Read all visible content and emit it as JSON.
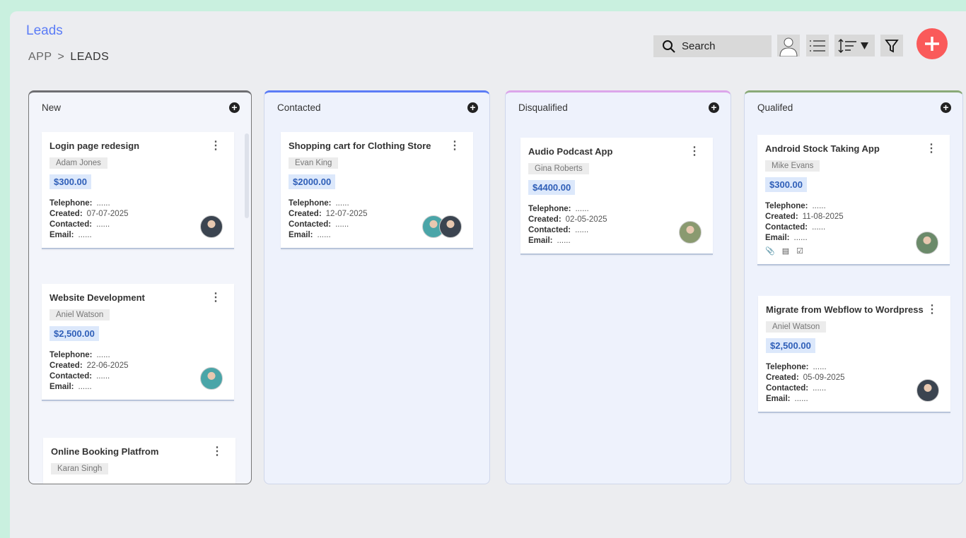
{
  "header": {
    "title": "Leads",
    "breadcrumb": [
      "APP",
      ">",
      "LEADS"
    ]
  },
  "toolbar": {
    "search_placeholder": "Search"
  },
  "colors": {
    "accent": "#5b7cf6",
    "add": "#fa5a5a"
  },
  "columns": [
    {
      "title": "New",
      "color": "#6e6e72",
      "cards": [
        {
          "title": "Login page redesign",
          "owner": "Adam Jones",
          "amount": "$300.00",
          "telephone": "......",
          "created": "07-07-2025",
          "contacted": "......",
          "email": "......",
          "avatars": [
            "#3b4450"
          ]
        },
        {
          "title": "Website Development",
          "owner": "Aniel Watson",
          "amount": "$2,500.00",
          "telephone": "......",
          "created": "22-06-2025",
          "contacted": "......",
          "email": "......",
          "avatars": [
            "#4aa5a8"
          ]
        },
        {
          "title": "Online Booking Platfrom",
          "owner": "Karan Singh"
        }
      ]
    },
    {
      "title": "Contacted",
      "color": "#5b7cf6",
      "cards": [
        {
          "title": "Shopping cart for Clothing Store",
          "owner": "Evan King",
          "amount": "$2000.00",
          "telephone": "......",
          "created": "12-07-2025",
          "contacted": "......",
          "email": "......",
          "avatars": [
            "#4aa5a8",
            "#3b4450"
          ]
        }
      ]
    },
    {
      "title": "Disqualified",
      "color": "#dca6ea",
      "cards": [
        {
          "title": "Audio Podcast App",
          "owner": "Gina Roberts",
          "amount": "$4400.00",
          "telephone": "......",
          "created": "02-05-2025",
          "contacted": "......",
          "email": "......",
          "avatars": [
            "#8a9a70"
          ]
        }
      ]
    },
    {
      "title": "Qualifed",
      "color": "#8aaa78",
      "cards": [
        {
          "title": "Android Stock Taking App",
          "owner": "Mike Evans",
          "amount": "$300.00",
          "telephone": "......",
          "created": "11-08-2025",
          "contacted": "......",
          "email": "......",
          "avatars": [
            "#6b8a6a"
          ],
          "icons": true
        },
        {
          "title": "Migrate from Webflow to Wordpress",
          "owner": "Aniel Watson",
          "amount": "$2,500.00",
          "telephone": "......",
          "created": "05-09-2025",
          "contacted": "......",
          "email": "......",
          "avatars": [
            "#3b4450"
          ]
        }
      ]
    }
  ],
  "labels": {
    "telephone": "Telephone:",
    "created": "Created:",
    "contacted": "Contacted:",
    "email": "Email:"
  }
}
